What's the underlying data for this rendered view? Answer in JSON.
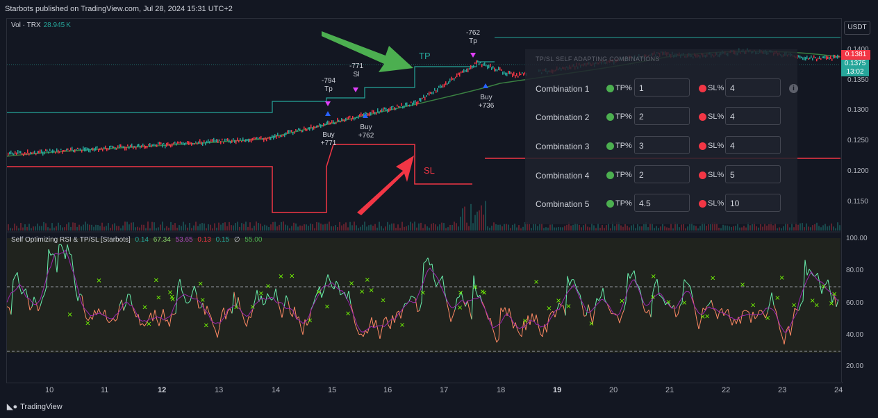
{
  "header": {
    "text": "Starbots published on TradingView.com, Jul 28, 2024 15:31 UTC+2"
  },
  "volume_label": {
    "name": "Vol · TRX",
    "value": "28.945 K"
  },
  "scale": {
    "currency": "USDT",
    "price_ticks": [
      "0.1400",
      "0.1350",
      "0.1300",
      "0.1250",
      "0.1200",
      "0.1150"
    ],
    "price_tag_red": "0.1381",
    "price_tag_green": "0.1375",
    "price_tag_timer": "13:02",
    "rsi_ticks": [
      "100.00",
      "80.00",
      "60.00",
      "40.00",
      "20.00"
    ]
  },
  "rsi_label": {
    "name": "Self Optimizing RSI & TP/SL [Starbots]",
    "values": [
      "0.14",
      "67.34",
      "53.65",
      "0.13",
      "0.15",
      "∅",
      "55.00"
    ],
    "colors": [
      "#26a69a",
      "#89d36b",
      "#ab47bc",
      "#f23645",
      "#26a69a",
      "#d1d4dc",
      "#4caf50"
    ]
  },
  "overlay": {
    "title": "TP/SL SELF ADAPTING COMBINATIONS",
    "tp_label": "TP%",
    "sl_label": "SL%",
    "rows": [
      {
        "label": "Combination 1",
        "tp": "1",
        "sl": "4"
      },
      {
        "label": "Combination 2",
        "tp": "2",
        "sl": "4"
      },
      {
        "label": "Combination 3",
        "tp": "3",
        "sl": "4"
      },
      {
        "label": "Combination 4",
        "tp": "2",
        "sl": "5"
      },
      {
        "label": "Combination 5",
        "tp": "4.5",
        "sl": "10"
      }
    ],
    "info": "i"
  },
  "annotations": {
    "tp_big": "TP",
    "sl_big": "SL",
    "a1": "-794",
    "a1b": "Tp",
    "a2": "-771",
    "a2b": "Sl",
    "a3": "-762",
    "a3b": "Tp",
    "b1": "Buy",
    "b1b": "+771",
    "b2": "Buy",
    "b2b": "+762",
    "b3": "Buy",
    "b3b": "+736"
  },
  "x_labels": [
    "10",
    "11",
    "12",
    "13",
    "14",
    "15",
    "16",
    "17",
    "18",
    "19",
    "20",
    "21",
    "22",
    "23",
    "24"
  ],
  "footer": {
    "brand": "TradingView"
  },
  "colors": {
    "background": "#131722",
    "up": "#26a69a",
    "down": "#f23645",
    "rsi_green": "#00e676",
    "rsi_purple": "#9c27b0"
  }
}
